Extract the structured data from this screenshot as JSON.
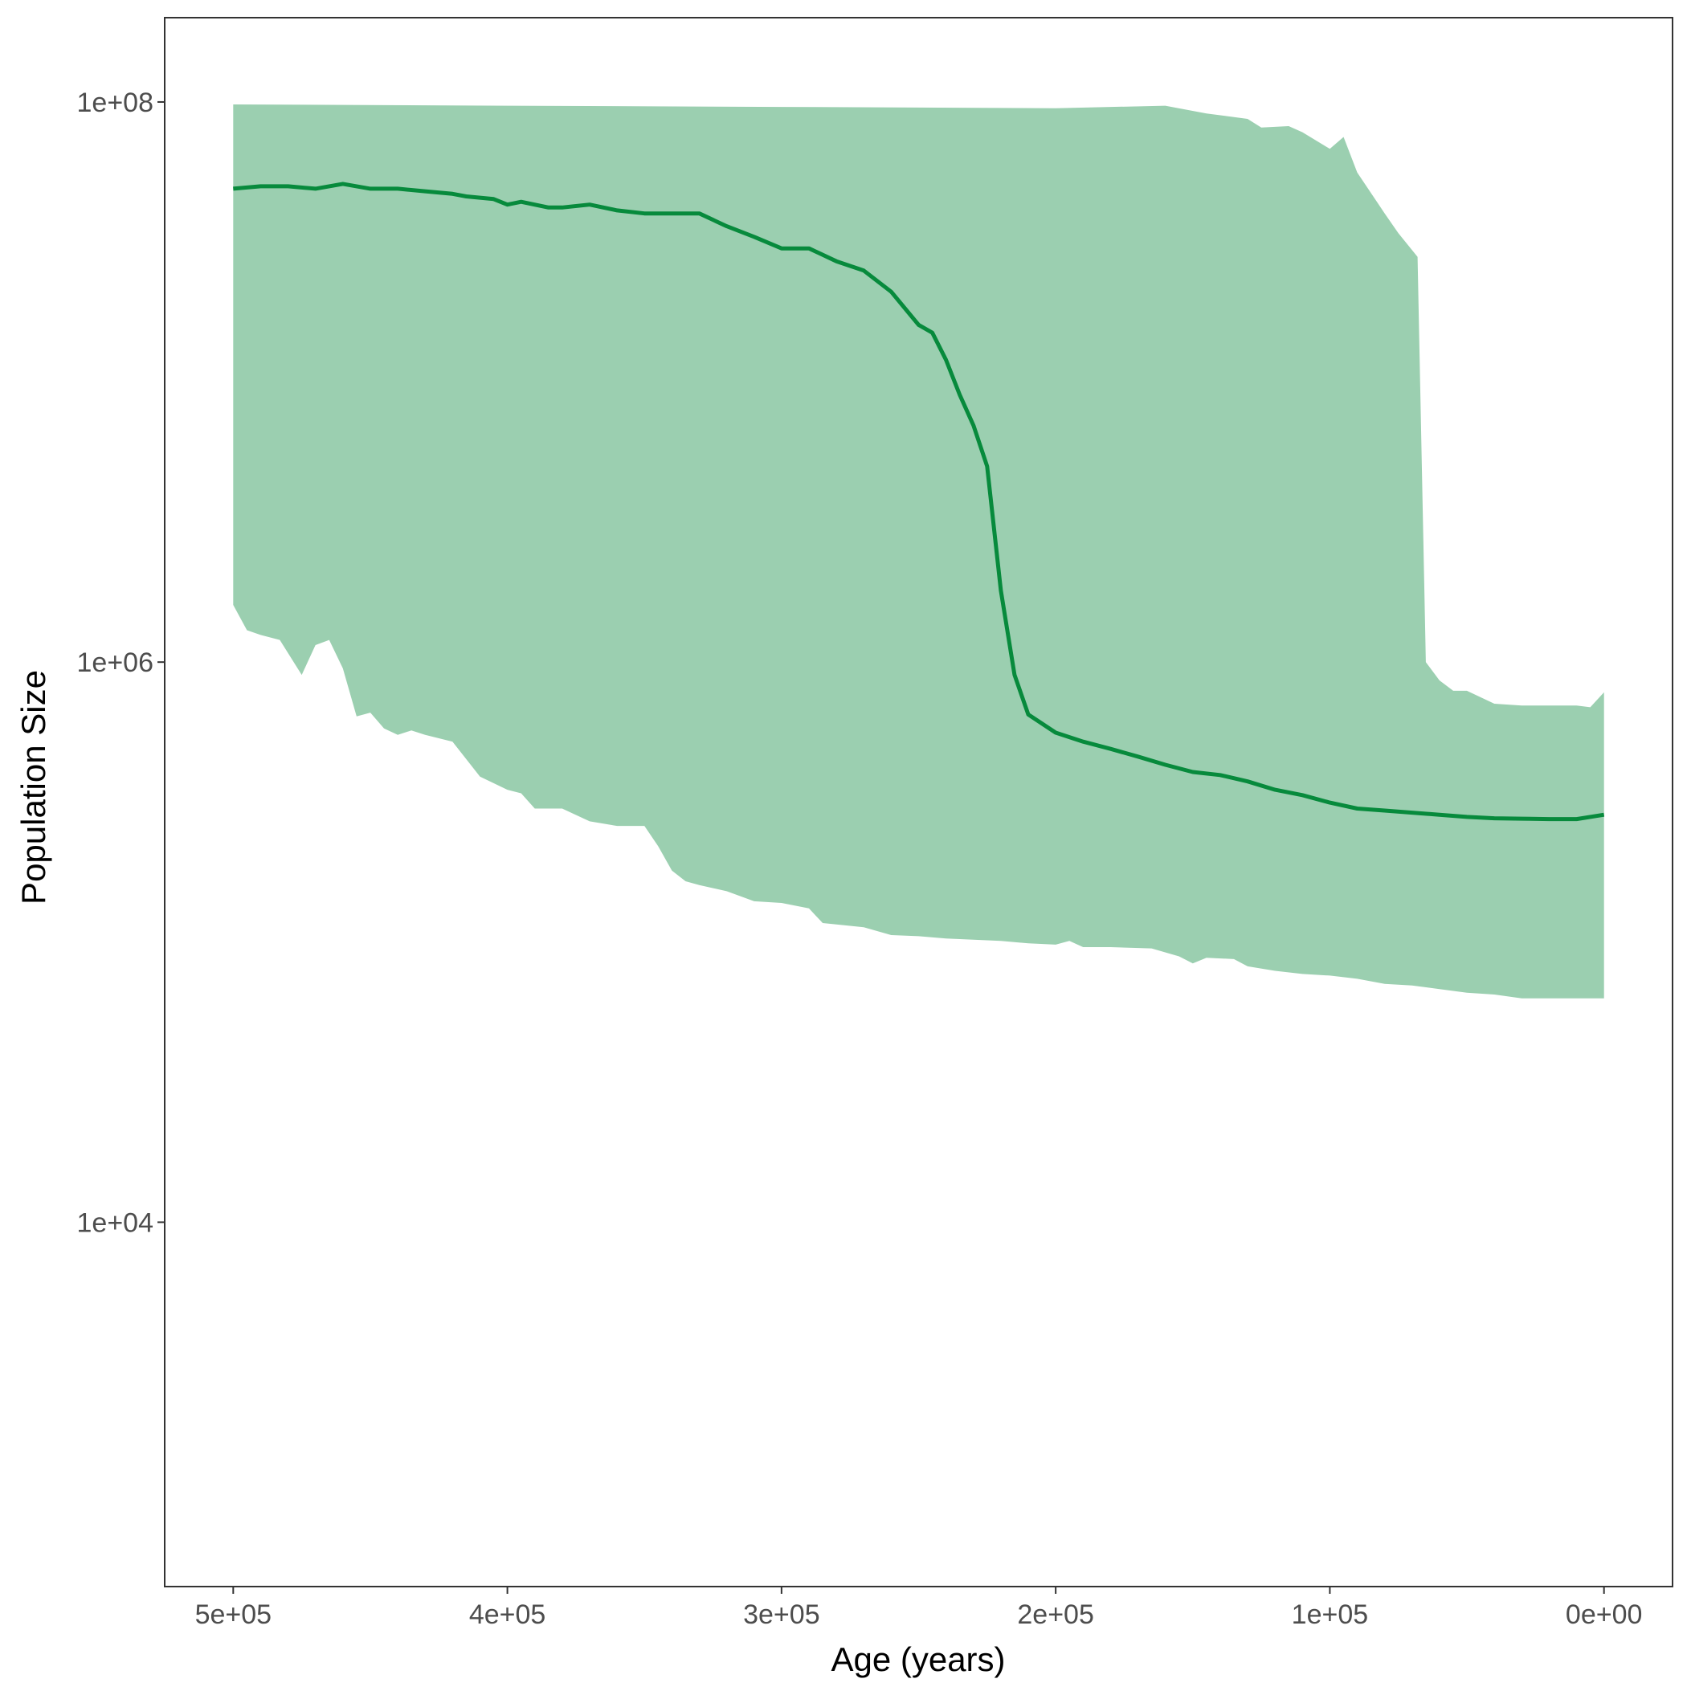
{
  "chart_data": {
    "type": "area",
    "xlabel": "Age (years)",
    "ylabel": "Population Size",
    "x_reversed": true,
    "y_log_scale": true,
    "xlim": [
      -25000,
      525000
    ],
    "ylim": [
      500,
      200000000
    ],
    "grid": false,
    "x_ticks": [
      {
        "value": 500000,
        "label": "5e+05"
      },
      {
        "value": 400000,
        "label": "4e+05"
      },
      {
        "value": 300000,
        "label": "3e+05"
      },
      {
        "value": 200000,
        "label": "2e+05"
      },
      {
        "value": 100000,
        "label": "1e+05"
      },
      {
        "value": 0,
        "label": "0e+00"
      }
    ],
    "y_ticks": [
      {
        "value": 100000000,
        "label": "1e+08"
      },
      {
        "value": 1000000,
        "label": "1e+06"
      },
      {
        "value": 10000,
        "label": "1e+04"
      }
    ],
    "colors": {
      "line": "#078a3c",
      "band": "#9bcfb0",
      "axis": "#333333"
    },
    "band": {
      "upper": [
        [
          500000,
          98000000
        ],
        [
          400000,
          97000000
        ],
        [
          300000,
          96000000
        ],
        [
          200000,
          95000000
        ],
        [
          160000,
          97000000
        ],
        [
          145000,
          91000000
        ],
        [
          130000,
          87000000
        ],
        [
          125000,
          81000000
        ],
        [
          115000,
          82000000
        ],
        [
          110000,
          78000000
        ],
        [
          100000,
          68000000
        ],
        [
          95000,
          75000000
        ],
        [
          90000,
          56000000
        ],
        [
          80000,
          40000000
        ],
        [
          75000,
          34000000
        ],
        [
          68000,
          28000000
        ],
        [
          65000,
          1000000
        ],
        [
          60000,
          860000
        ],
        [
          55000,
          790000
        ],
        [
          50000,
          790000
        ],
        [
          40000,
          710000
        ],
        [
          30000,
          700000
        ],
        [
          10000,
          700000
        ],
        [
          5000,
          690000
        ],
        [
          0,
          780000
        ]
      ],
      "lower": [
        [
          500000,
          1600000
        ],
        [
          495000,
          1300000
        ],
        [
          490000,
          1250000
        ],
        [
          483000,
          1200000
        ],
        [
          475000,
          900000
        ],
        [
          470000,
          1150000
        ],
        [
          465000,
          1200000
        ],
        [
          460000,
          950000
        ],
        [
          455000,
          640000
        ],
        [
          450000,
          660000
        ],
        [
          445000,
          580000
        ],
        [
          440000,
          550000
        ],
        [
          435000,
          570000
        ],
        [
          430000,
          550000
        ],
        [
          420000,
          520000
        ],
        [
          410000,
          390000
        ],
        [
          400000,
          350000
        ],
        [
          395000,
          340000
        ],
        [
          390000,
          300000
        ],
        [
          380000,
          300000
        ],
        [
          370000,
          270000
        ],
        [
          360000,
          260000
        ],
        [
          350000,
          260000
        ],
        [
          345000,
          220000
        ],
        [
          340000,
          180000
        ],
        [
          335000,
          165000
        ],
        [
          330000,
          160000
        ],
        [
          320000,
          152000
        ],
        [
          310000,
          140000
        ],
        [
          300000,
          138000
        ],
        [
          290000,
          132000
        ],
        [
          285000,
          117000
        ],
        [
          270000,
          113000
        ],
        [
          260000,
          106000
        ],
        [
          250000,
          105000
        ],
        [
          240000,
          103000
        ],
        [
          230000,
          102000
        ],
        [
          220000,
          101000
        ],
        [
          210000,
          99000
        ],
        [
          200000,
          98000
        ],
        [
          195000,
          101000
        ],
        [
          190000,
          96000
        ],
        [
          180000,
          96000
        ],
        [
          165000,
          95000
        ],
        [
          155000,
          89000
        ],
        [
          150000,
          84000
        ],
        [
          145000,
          88000
        ],
        [
          135000,
          87000
        ],
        [
          130000,
          82000
        ],
        [
          120000,
          79000
        ],
        [
          110000,
          77000
        ],
        [
          100000,
          76000
        ],
        [
          90000,
          74000
        ],
        [
          80000,
          71000
        ],
        [
          70000,
          70000
        ],
        [
          60000,
          68000
        ],
        [
          50000,
          66000
        ],
        [
          40000,
          65000
        ],
        [
          30000,
          63000
        ],
        [
          20000,
          63000
        ],
        [
          0,
          63000
        ]
      ]
    },
    "series": [
      {
        "values": [
          [
            500000,
            49000000
          ],
          [
            490000,
            50000000
          ],
          [
            480000,
            50000000
          ],
          [
            470000,
            49000000
          ],
          [
            460000,
            51000000
          ],
          [
            450000,
            49000000
          ],
          [
            440000,
            49000000
          ],
          [
            430000,
            48000000
          ],
          [
            420000,
            47000000
          ],
          [
            415000,
            46000000
          ],
          [
            405000,
            45000000
          ],
          [
            400000,
            43000000
          ],
          [
            395000,
            44000000
          ],
          [
            385000,
            42000000
          ],
          [
            380000,
            42000000
          ],
          [
            370000,
            43000000
          ],
          [
            360000,
            41000000
          ],
          [
            350000,
            40000000
          ],
          [
            340000,
            40000000
          ],
          [
            330000,
            40000000
          ],
          [
            320000,
            36000000
          ],
          [
            310000,
            33000000
          ],
          [
            300000,
            30000000
          ],
          [
            290000,
            30000000
          ],
          [
            280000,
            27000000
          ],
          [
            270000,
            25000000
          ],
          [
            260000,
            21000000
          ],
          [
            250000,
            16000000
          ],
          [
            245000,
            15000000
          ],
          [
            240000,
            12000000
          ],
          [
            235000,
            9000000
          ],
          [
            230000,
            7000000
          ],
          [
            225000,
            5000000
          ],
          [
            220000,
            1800000
          ],
          [
            215000,
            900000
          ],
          [
            210000,
            650000
          ],
          [
            200000,
            560000
          ],
          [
            190000,
            520000
          ],
          [
            180000,
            490000
          ],
          [
            170000,
            460000
          ],
          [
            160000,
            430000
          ],
          [
            150000,
            405000
          ],
          [
            140000,
            395000
          ],
          [
            130000,
            375000
          ],
          [
            120000,
            350000
          ],
          [
            110000,
            335000
          ],
          [
            100000,
            315000
          ],
          [
            90000,
            300000
          ],
          [
            80000,
            295000
          ],
          [
            70000,
            290000
          ],
          [
            60000,
            285000
          ],
          [
            50000,
            280000
          ],
          [
            40000,
            277000
          ],
          [
            30000,
            276000
          ],
          [
            20000,
            275000
          ],
          [
            10000,
            275000
          ],
          [
            0,
            285000
          ]
        ]
      }
    ]
  }
}
